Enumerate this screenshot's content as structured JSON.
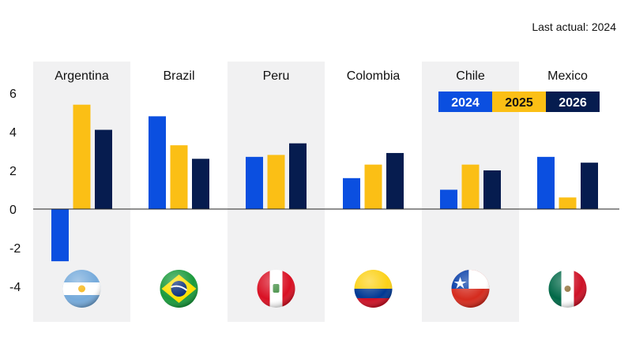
{
  "note": "Last actual: 2024",
  "chart_data": {
    "type": "bar",
    "categories": [
      "Argentina",
      "Brazil",
      "Peru",
      "Colombia",
      "Chile",
      "Mexico"
    ],
    "series": [
      {
        "name": "2024",
        "color": "#0b4fe0",
        "values": [
          -2.7,
          4.8,
          2.7,
          1.6,
          1.0,
          2.7
        ]
      },
      {
        "name": "2025",
        "color": "#fbbf15",
        "values": [
          5.4,
          3.3,
          2.8,
          2.3,
          2.3,
          0.6
        ]
      },
      {
        "name": "2026",
        "color": "#061c4f",
        "values": [
          4.1,
          2.6,
          3.4,
          2.9,
          2.0,
          2.4
        ]
      }
    ],
    "yticks": [
      6,
      4,
      2,
      0,
      -2,
      -4
    ],
    "ylim": [
      -5.8,
      7.6
    ],
    "title": "",
    "xlabel": "",
    "ylabel": "",
    "legend_position": "top-right",
    "flag_icons": [
      "argentina-flag-icon",
      "brazil-flag-icon",
      "peru-flag-icon",
      "colombia-flag-icon",
      "chile-flag-icon",
      "mexico-flag-icon"
    ]
  }
}
